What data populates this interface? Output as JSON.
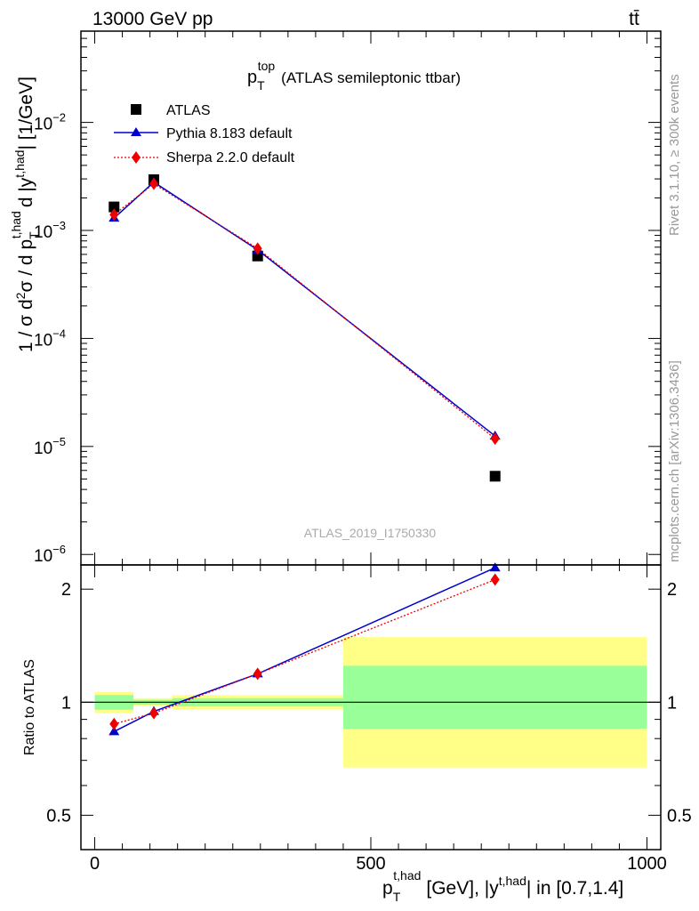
{
  "header": {
    "energy_label": "13000 GeV pp",
    "process_label": "tt̄"
  },
  "side_text": {
    "rivet": "Rivet 3.1.10, ≥ 300k events",
    "mcplots": "mcplots.cern.ch [arXiv:1306.3436]"
  },
  "chart_data": [
    {
      "type": "line",
      "panel": "main",
      "title": "p_T^top (ATLAS semileptonic ttbar)",
      "title_main": "p",
      "title_sub": "T",
      "title_sup": "top",
      "title_rest": "(ATLAS semileptonic ttbar)",
      "watermark": "ATLAS_2019_I1750330",
      "ylabel": "1 / σ d²σ / d p_T^{t,had} d |y^{t,had}| [1/GeV]",
      "yscale": "log",
      "ylim": [
        8e-07,
        0.07
      ],
      "xlim": [
        -25,
        1025
      ],
      "ytick_labels": [
        {
          "value": 1e-06,
          "base": "10",
          "exp": "−6"
        },
        {
          "value": 1e-05,
          "base": "10",
          "exp": "−5"
        },
        {
          "value": 0.0001,
          "base": "10",
          "exp": "−4"
        },
        {
          "value": 0.001,
          "base": "10",
          "exp": "−3"
        },
        {
          "value": 0.01,
          "base": "10",
          "exp": "−2"
        }
      ],
      "legend": [
        {
          "label": "ATLAS",
          "marker": "square",
          "color": "#000000"
        },
        {
          "label": "Pythia 8.183 default",
          "marker": "triangle",
          "color": "#0000cc"
        },
        {
          "label": "Sherpa 2.2.0 default",
          "marker": "diamond",
          "color": "#ee0000"
        }
      ],
      "x": [
        35,
        107,
        295,
        725
      ],
      "series": [
        {
          "name": "ATLAS",
          "values": [
            0.00165,
            0.00295,
            0.00058,
            5.3e-06
          ],
          "color": "#000000",
          "marker": "square"
        },
        {
          "name": "Pythia 8.183 default",
          "values": [
            0.0013,
            0.0028,
            0.00066,
            1.25e-05
          ],
          "color": "#0000cc",
          "marker": "triangle",
          "line": "solid"
        },
        {
          "name": "Sherpa 2.2.0 default",
          "values": [
            0.0014,
            0.0027,
            0.00068,
            1.18e-05
          ],
          "color": "#ee0000",
          "marker": "diamond",
          "line": "dotted"
        }
      ]
    },
    {
      "type": "line",
      "panel": "ratio",
      "ylabel": "Ratio to ATLAS",
      "xlabel": "p_T^{t,had} [GeV], |y^{t,had}| in [0.7,1.4]",
      "xlabel_p": "p",
      "xlabel_sub": "T",
      "xlabel_sup": "t,had",
      "xlabel_mid": "[GeV], |y",
      "xlabel_sup2": "t,had",
      "xlabel_end": "| in [0.7,1.4]",
      "yscale": "log",
      "ylim": [
        0.405,
        2.32
      ],
      "xlim": [
        -25,
        1025
      ],
      "ytick_labels": [
        "0.5",
        "1",
        "2"
      ],
      "ytick_values": [
        0.5,
        1,
        2
      ],
      "xtick_labels": [
        "0",
        "500",
        "1000"
      ],
      "xtick_values": [
        0,
        500,
        1000
      ],
      "bins": [
        [
          0,
          70
        ],
        [
          70,
          140
        ],
        [
          140,
          450
        ],
        [
          450,
          1000
        ]
      ],
      "band_inner": [
        [
          0.955,
          1.045
        ],
        [
          0.985,
          1.015
        ],
        [
          0.975,
          1.025
        ],
        [
          0.85,
          1.25
        ]
      ],
      "band_outer": [
        [
          0.935,
          1.065
        ],
        [
          0.975,
          1.025
        ],
        [
          0.955,
          1.045
        ],
        [
          0.67,
          1.49
        ]
      ],
      "x": [
        35,
        107,
        295,
        725
      ],
      "series": [
        {
          "name": "Pythia 8.183 default",
          "values": [
            0.835,
            0.945,
            1.19,
            2.28
          ],
          "color": "#0000cc",
          "marker": "triangle",
          "line": "solid"
        },
        {
          "name": "Sherpa 2.2.0 default",
          "values": [
            0.875,
            0.935,
            1.19,
            2.12
          ],
          "color": "#ee0000",
          "marker": "diamond",
          "line": "dotted"
        }
      ]
    }
  ],
  "colors": {
    "band_inner": "#99ff99",
    "band_outer": "#ffff88",
    "axis": "#000000",
    "side_text": "#999999",
    "watermark": "#aaaaaa"
  }
}
